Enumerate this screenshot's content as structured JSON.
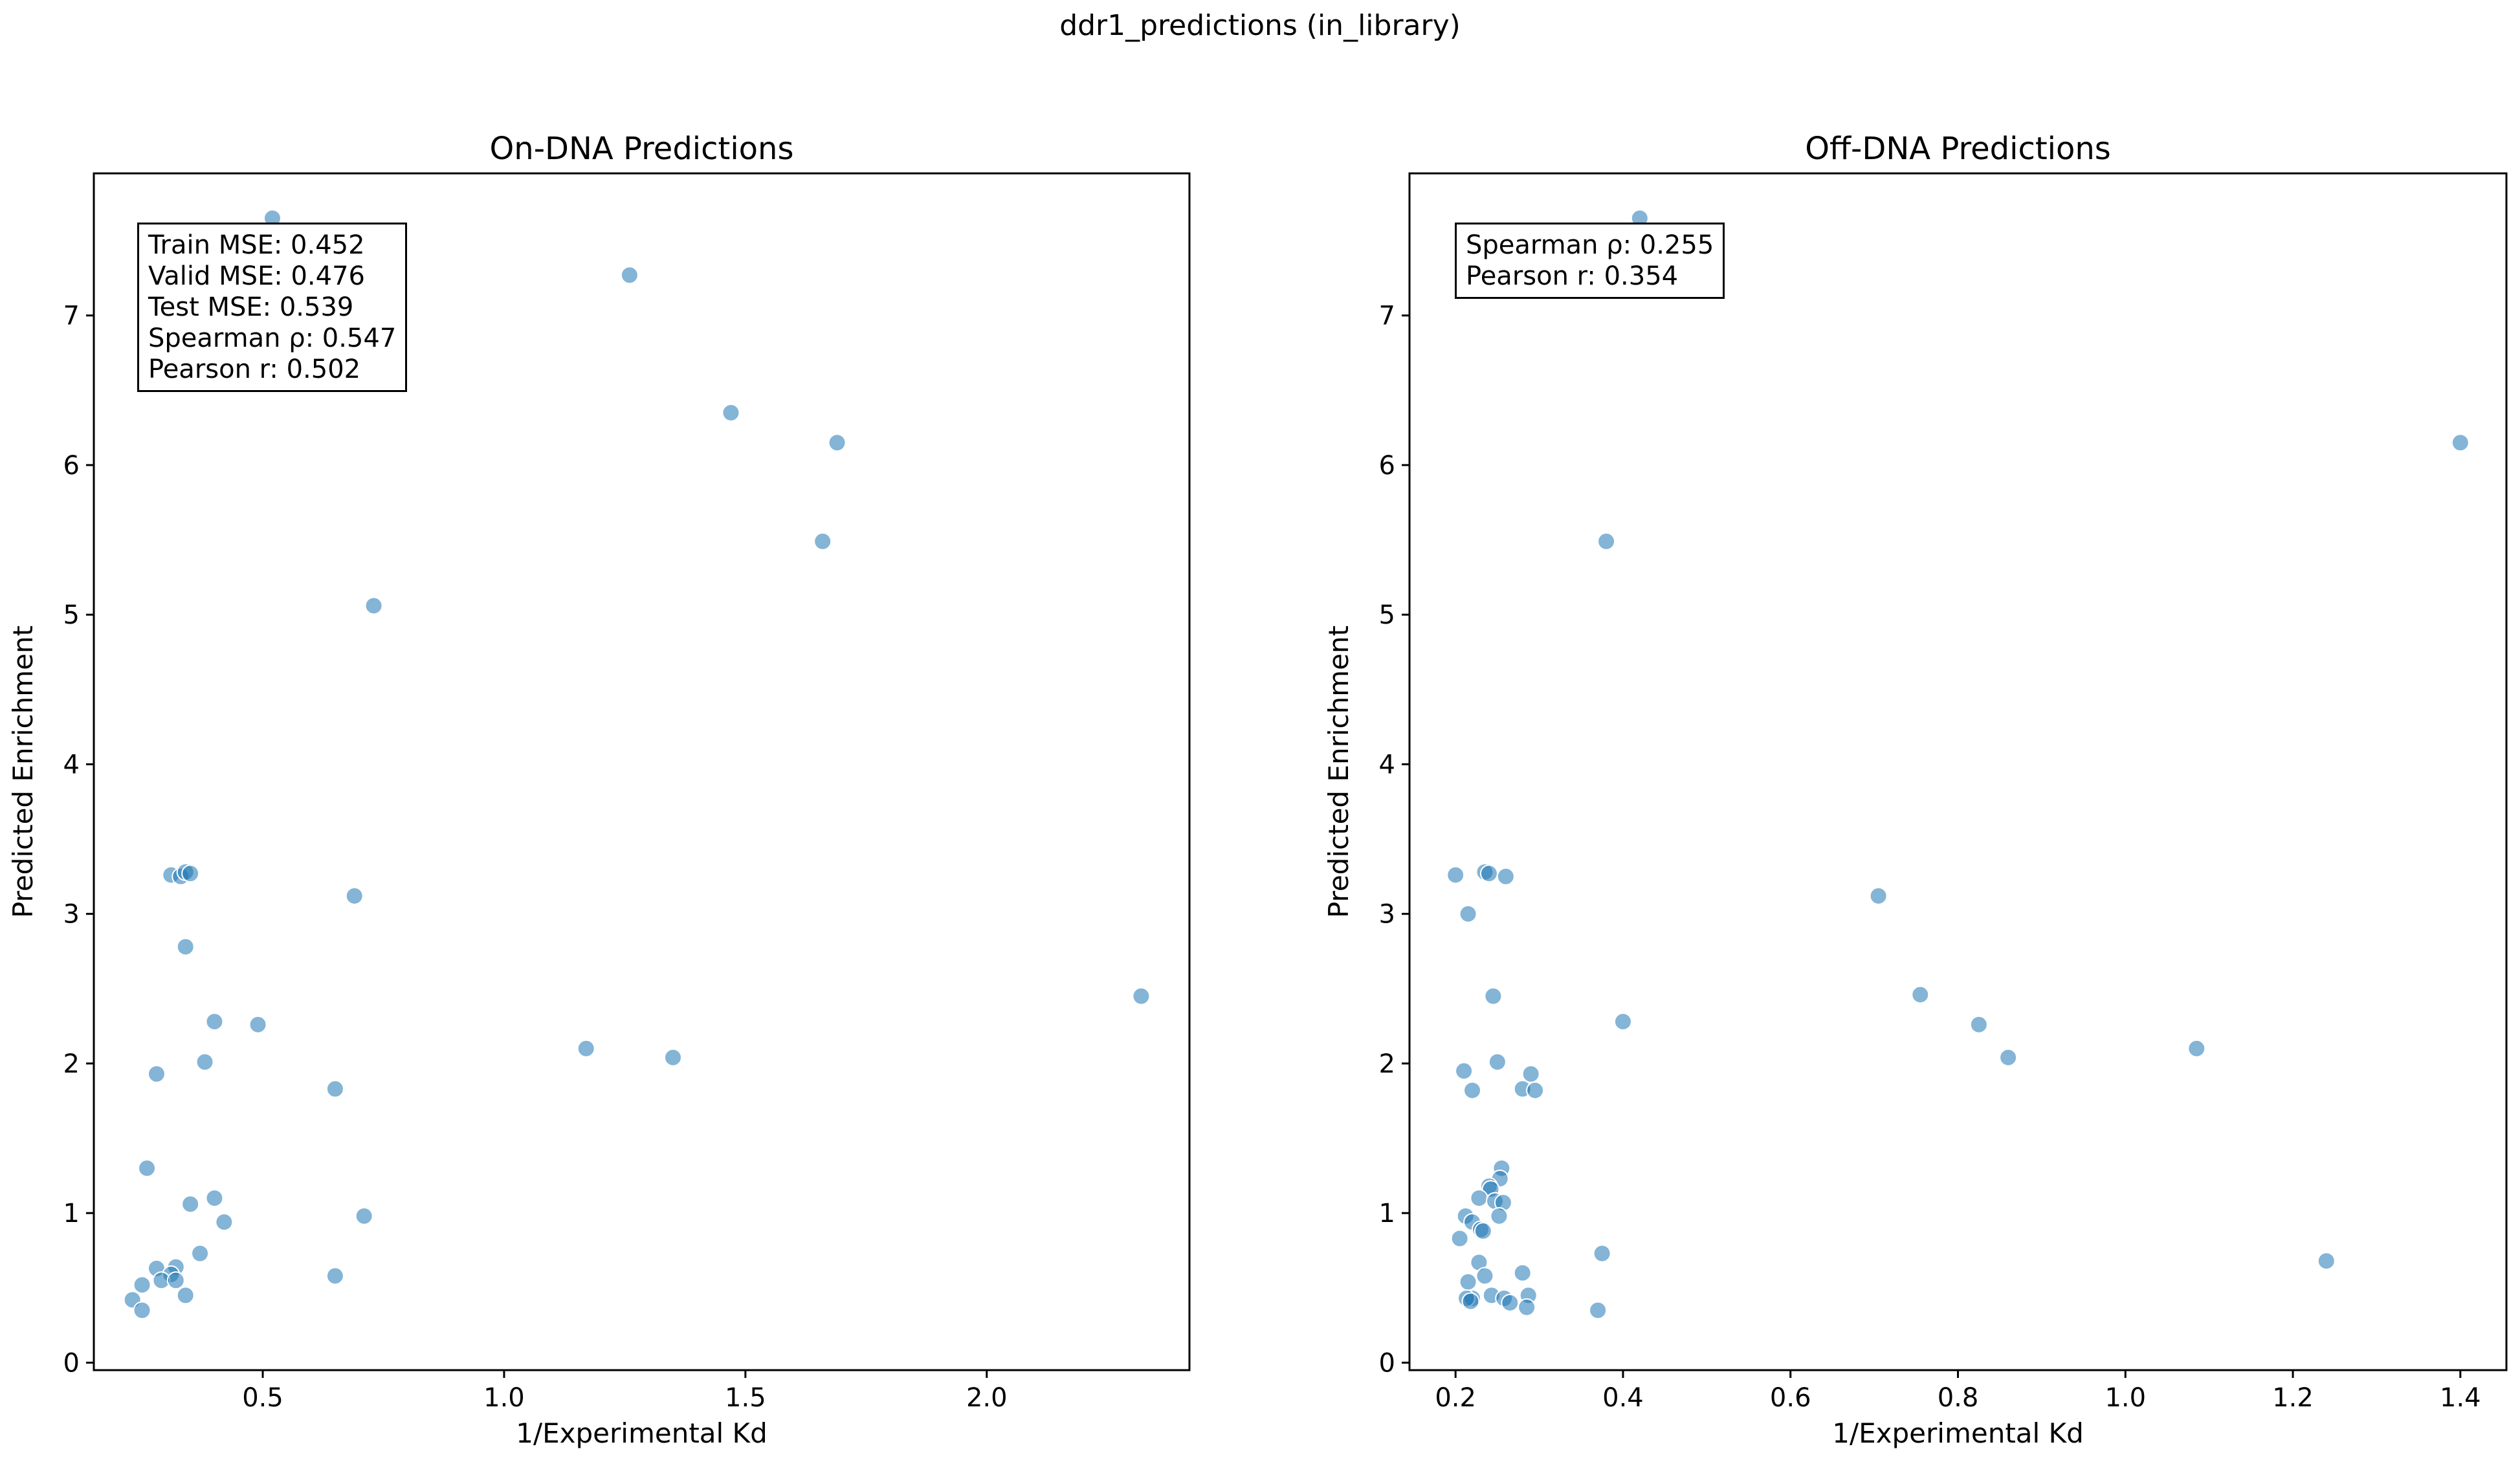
{
  "figure": {
    "suptitle": "ddr1_predictions (in_library)"
  },
  "chart_data": [
    {
      "type": "scatter",
      "title": "On-DNA Predictions",
      "xlabel": "1/Experimental Kd",
      "ylabel": "Predicted Enrichment",
      "xlim": [
        0.15,
        2.42
      ],
      "ylim": [
        -0.05,
        7.95
      ],
      "xticks": [
        0.5,
        1.0,
        1.5,
        2.0
      ],
      "xtick_labels": [
        "0.5",
        "1.0",
        "1.5",
        "2.0"
      ],
      "yticks": [
        0,
        1,
        2,
        3,
        4,
        5,
        6,
        7
      ],
      "ytick_labels": [
        "0",
        "1",
        "2",
        "3",
        "4",
        "5",
        "6",
        "7"
      ],
      "grid": false,
      "point_color": "#1f77b4",
      "stats": [
        "Train MSE: 0.452",
        "Valid MSE: 0.476",
        "Test MSE: 0.539",
        "Spearman ρ: 0.547",
        "Pearson r: 0.502"
      ],
      "points": [
        {
          "x": 0.52,
          "y": 7.65
        },
        {
          "x": 1.26,
          "y": 7.27
        },
        {
          "x": 1.47,
          "y": 6.35
        },
        {
          "x": 1.69,
          "y": 6.15
        },
        {
          "x": 1.66,
          "y": 5.49
        },
        {
          "x": 0.73,
          "y": 5.06
        },
        {
          "x": 0.31,
          "y": 3.26
        },
        {
          "x": 0.33,
          "y": 3.25
        },
        {
          "x": 0.34,
          "y": 3.28
        },
        {
          "x": 0.35,
          "y": 3.27
        },
        {
          "x": 0.69,
          "y": 3.12
        },
        {
          "x": 0.34,
          "y": 2.78
        },
        {
          "x": 0.4,
          "y": 2.28
        },
        {
          "x": 0.49,
          "y": 2.26
        },
        {
          "x": 2.32,
          "y": 2.45
        },
        {
          "x": 1.17,
          "y": 2.1
        },
        {
          "x": 1.35,
          "y": 2.04
        },
        {
          "x": 0.38,
          "y": 2.01
        },
        {
          "x": 0.28,
          "y": 1.93
        },
        {
          "x": 0.65,
          "y": 1.83
        },
        {
          "x": 0.26,
          "y": 1.3
        },
        {
          "x": 0.4,
          "y": 1.1
        },
        {
          "x": 0.35,
          "y": 1.06
        },
        {
          "x": 0.71,
          "y": 0.98
        },
        {
          "x": 0.42,
          "y": 0.94
        },
        {
          "x": 0.37,
          "y": 0.73
        },
        {
          "x": 0.28,
          "y": 0.63
        },
        {
          "x": 0.32,
          "y": 0.64
        },
        {
          "x": 0.31,
          "y": 0.59
        },
        {
          "x": 0.29,
          "y": 0.55
        },
        {
          "x": 0.32,
          "y": 0.55
        },
        {
          "x": 0.65,
          "y": 0.58
        },
        {
          "x": 0.25,
          "y": 0.52
        },
        {
          "x": 0.34,
          "y": 0.45
        },
        {
          "x": 0.23,
          "y": 0.42
        },
        {
          "x": 0.25,
          "y": 0.35
        }
      ]
    },
    {
      "type": "scatter",
      "title": "Off-DNA Predictions",
      "xlabel": "1/Experimental Kd",
      "ylabel": "Predicted Enrichment",
      "xlim": [
        0.145,
        1.455
      ],
      "ylim": [
        -0.05,
        7.95
      ],
      "xticks": [
        0.2,
        0.4,
        0.6,
        0.8,
        1.0,
        1.2,
        1.4
      ],
      "xtick_labels": [
        "0.2",
        "0.4",
        "0.6",
        "0.8",
        "1.0",
        "1.2",
        "1.4"
      ],
      "yticks": [
        0,
        1,
        2,
        3,
        4,
        5,
        6,
        7
      ],
      "ytick_labels": [
        "0",
        "1",
        "2",
        "3",
        "4",
        "5",
        "6",
        "7"
      ],
      "grid": false,
      "point_color": "#1f77b4",
      "stats": [
        "Spearman ρ: 0.255",
        "Pearson r: 0.354"
      ],
      "points": [
        {
          "x": 0.42,
          "y": 7.65
        },
        {
          "x": 1.4,
          "y": 6.15
        },
        {
          "x": 0.38,
          "y": 5.49
        },
        {
          "x": 0.2,
          "y": 3.26
        },
        {
          "x": 0.235,
          "y": 3.28
        },
        {
          "x": 0.24,
          "y": 3.27
        },
        {
          "x": 0.26,
          "y": 3.25
        },
        {
          "x": 0.705,
          "y": 3.12
        },
        {
          "x": 0.215,
          "y": 3.0
        },
        {
          "x": 0.755,
          "y": 2.46
        },
        {
          "x": 0.245,
          "y": 2.45
        },
        {
          "x": 0.4,
          "y": 2.28
        },
        {
          "x": 0.825,
          "y": 2.26
        },
        {
          "x": 1.085,
          "y": 2.1
        },
        {
          "x": 0.86,
          "y": 2.04
        },
        {
          "x": 0.25,
          "y": 2.01
        },
        {
          "x": 0.21,
          "y": 1.95
        },
        {
          "x": 0.29,
          "y": 1.93
        },
        {
          "x": 0.22,
          "y": 1.82
        },
        {
          "x": 0.28,
          "y": 1.83
        },
        {
          "x": 0.295,
          "y": 1.82
        },
        {
          "x": 0.255,
          "y": 1.3
        },
        {
          "x": 0.253,
          "y": 1.23
        },
        {
          "x": 0.24,
          "y": 1.18
        },
        {
          "x": 0.242,
          "y": 1.16
        },
        {
          "x": 0.228,
          "y": 1.1
        },
        {
          "x": 0.247,
          "y": 1.08
        },
        {
          "x": 0.257,
          "y": 1.07
        },
        {
          "x": 0.212,
          "y": 0.98
        },
        {
          "x": 0.252,
          "y": 0.98
        },
        {
          "x": 0.22,
          "y": 0.94
        },
        {
          "x": 0.23,
          "y": 0.89
        },
        {
          "x": 0.233,
          "y": 0.88
        },
        {
          "x": 0.205,
          "y": 0.83
        },
        {
          "x": 0.375,
          "y": 0.73
        },
        {
          "x": 0.228,
          "y": 0.67
        },
        {
          "x": 1.24,
          "y": 0.68
        },
        {
          "x": 0.235,
          "y": 0.58
        },
        {
          "x": 0.28,
          "y": 0.6
        },
        {
          "x": 0.215,
          "y": 0.54
        },
        {
          "x": 0.243,
          "y": 0.45
        },
        {
          "x": 0.287,
          "y": 0.45
        },
        {
          "x": 0.22,
          "y": 0.43
        },
        {
          "x": 0.258,
          "y": 0.43
        },
        {
          "x": 0.213,
          "y": 0.43
        },
        {
          "x": 0.265,
          "y": 0.4
        },
        {
          "x": 0.218,
          "y": 0.41
        },
        {
          "x": 0.285,
          "y": 0.37
        },
        {
          "x": 0.37,
          "y": 0.35
        }
      ]
    }
  ]
}
